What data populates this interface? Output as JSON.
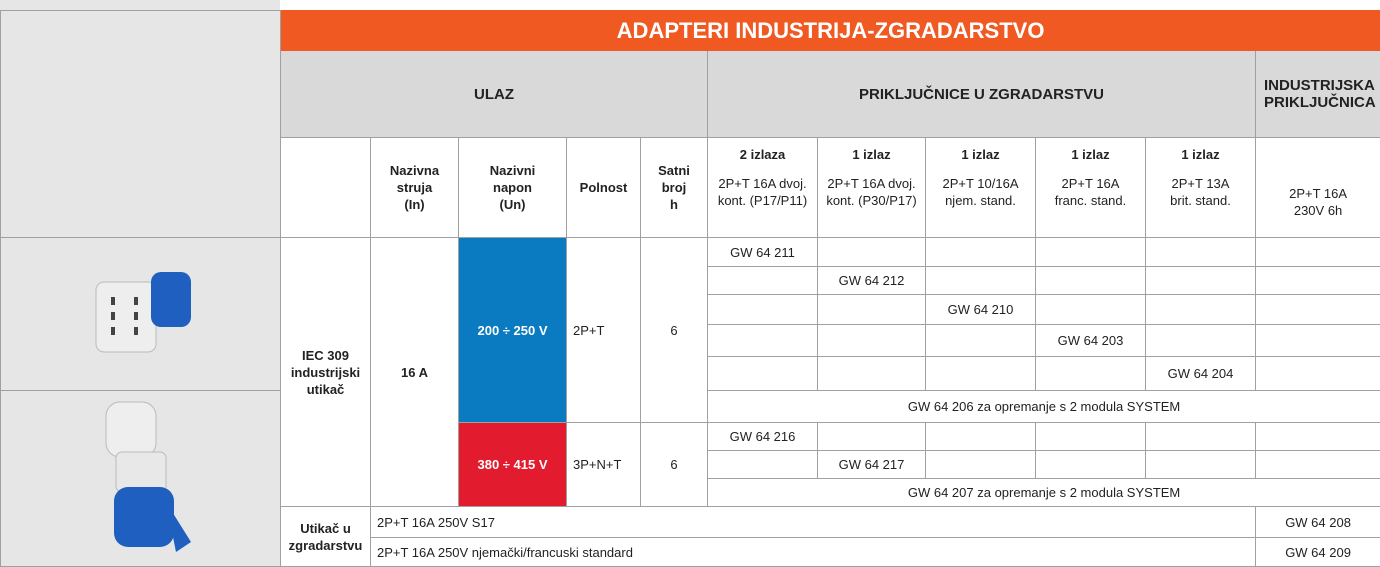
{
  "title": "ADAPTERI INDUSTRIJA-ZGRADARSTVO",
  "groups": {
    "ulaz": "ULAZ",
    "prikljucnice": "PRIKLJUČNICE U ZGRADARSTVU",
    "industrijska": "INDUSTRIJSKA\nPRIKLJUČNICA"
  },
  "columns": {
    "struja": "Nazivna\nstruja\n(In)",
    "napon": "Nazivni\nnapon\n(Un)",
    "polnost": "Polnost",
    "satni": "Satni\nbroj\nh",
    "outputs": [
      {
        "count": "2 izlaza",
        "desc": "2P+T 16A dvoj.\nkont. (P17/P11)"
      },
      {
        "count": "1 izlaz",
        "desc": "2P+T 16A dvoj.\nkont. (P30/P17)"
      },
      {
        "count": "1 izlaz",
        "desc": "2P+T 10/16A\nnjem. stand."
      },
      {
        "count": "1 izlaz",
        "desc": "2P+T 16A\nfranc. stand."
      },
      {
        "count": "1 izlaz",
        "desc": "2P+T 13A\nbrit. stand."
      }
    ],
    "industrijska": "2P+T 16A\n230V 6h"
  },
  "input": {
    "type": "IEC 309\nindustrijski\nutikač",
    "current": "16 A"
  },
  "voltage_groups": [
    {
      "voltage": "200 ÷ 250 V",
      "poles": "2P+T",
      "hours": "6",
      "codes": [
        "GW 64 211",
        "GW 64 212",
        "GW 64 210",
        "GW 64 203",
        "GW 64 204"
      ],
      "system": "GW 64 206 za opremanje s 2 modula SYSTEM"
    },
    {
      "voltage": "380 ÷ 415 V",
      "poles": "3P+N+T",
      "hours": "6",
      "codes": [
        "GW 64 216",
        "GW 64 217"
      ],
      "system": "GW 64 207 za opremanje s 2 modula SYSTEM"
    }
  ],
  "building_plug": {
    "label": "Utikač u\nzgradarstvu",
    "rows": [
      {
        "desc": "2P+T 16A 250V S17",
        "code": "GW 64 208"
      },
      {
        "desc": "2P+T 16A 250V njemački/francuski standard",
        "code": "GW 64 209"
      }
    ]
  }
}
